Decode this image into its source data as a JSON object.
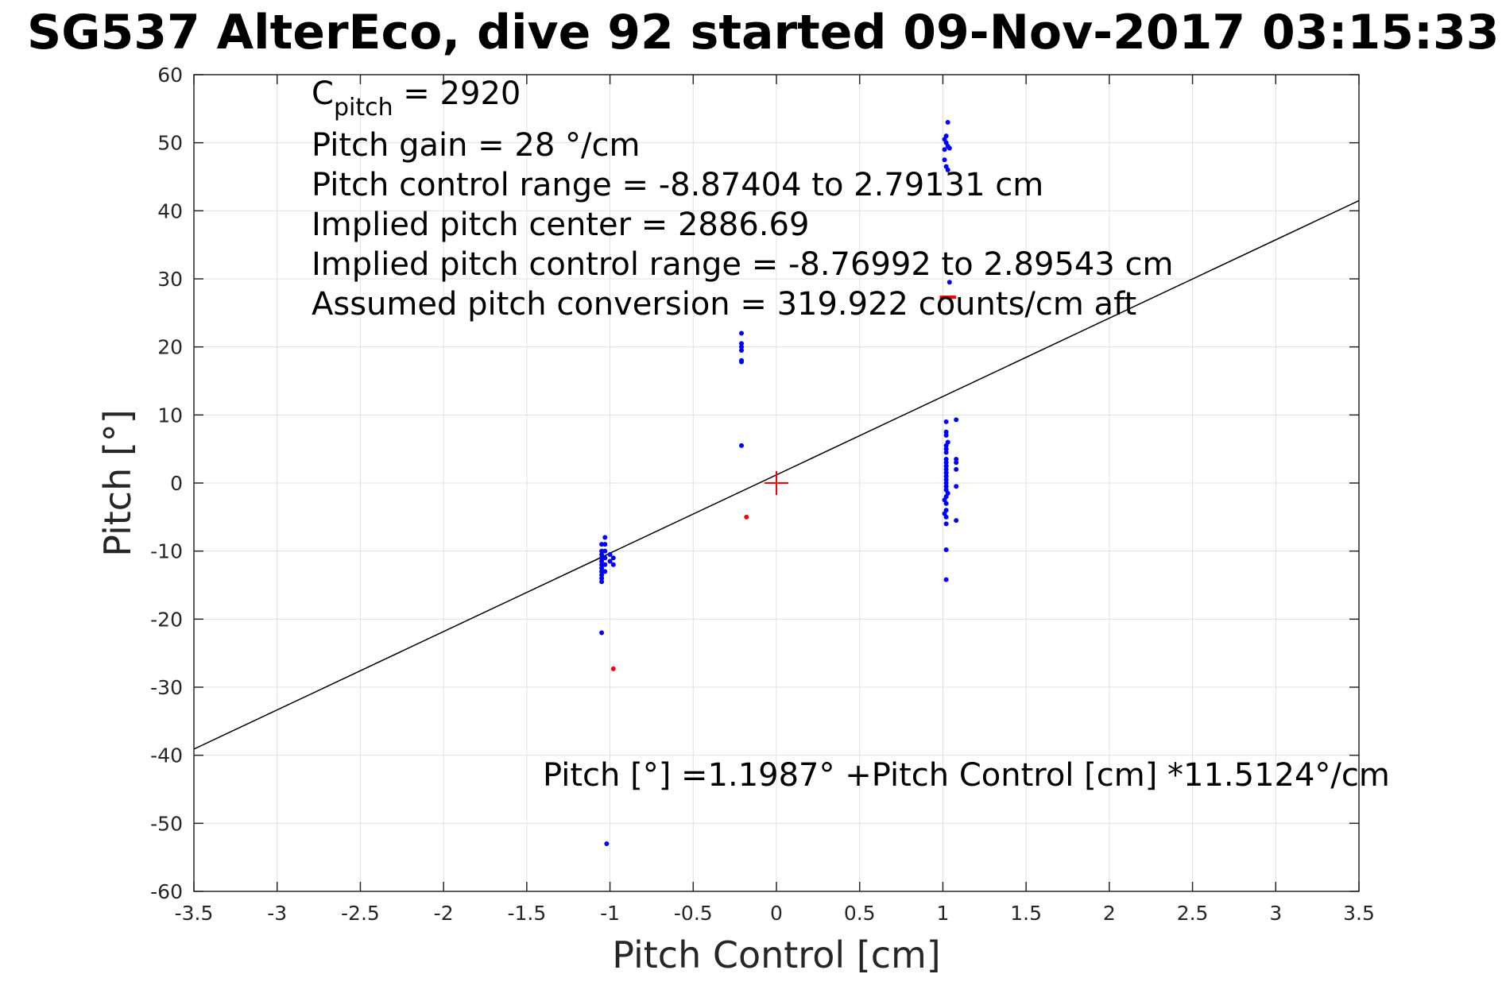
{
  "chart_data": {
    "type": "scatter",
    "title": "SG537 AlterEco, dive 92 started 09-Nov-2017 03:15:33",
    "xlabel": "Pitch Control [cm]",
    "ylabel": "Pitch [°]",
    "xlim": [
      -3.5,
      3.5
    ],
    "ylim": [
      -60,
      60
    ],
    "x_ticks": [
      -3.5,
      -3,
      -2.5,
      -2,
      -1.5,
      -1,
      -0.5,
      0,
      0.5,
      1,
      1.5,
      2,
      2.5,
      3,
      3.5
    ],
    "y_ticks": [
      -60,
      -50,
      -40,
      -30,
      -20,
      -10,
      0,
      10,
      20,
      30,
      40,
      50,
      60
    ],
    "grid": true,
    "colors": {
      "included": "#0000ff",
      "excluded": "#ff0000",
      "fit": "#000000",
      "center": "#ff0000"
    },
    "series": [
      {
        "color": "#0000ff",
        "marker": "dot",
        "points": [
          [
            -1.05,
            -9.0
          ],
          [
            -1.05,
            -10.0
          ],
          [
            -1.05,
            -10.5
          ],
          [
            -1.05,
            -11.0
          ],
          [
            -1.05,
            -11.5
          ],
          [
            -1.05,
            -12.0
          ],
          [
            -1.05,
            -12.5
          ],
          [
            -1.05,
            -13.0
          ],
          [
            -1.05,
            -13.5
          ],
          [
            -1.05,
            -14.0
          ],
          [
            -1.05,
            -14.5
          ],
          [
            -1.03,
            -8.0
          ],
          [
            -1.03,
            -9.0
          ],
          [
            -1.03,
            -10.0
          ],
          [
            -1.03,
            -11.0
          ],
          [
            -1.03,
            -12.0
          ],
          [
            -1.03,
            -13.0
          ],
          [
            -1.0,
            -10.5
          ],
          [
            -1.0,
            -11.5
          ],
          [
            -0.98,
            -11.0
          ],
          [
            -0.98,
            -12.0
          ],
          [
            -1.05,
            -22.0
          ],
          [
            -1.02,
            -53.0
          ],
          [
            -0.21,
            22.0
          ],
          [
            -0.21,
            20.5
          ],
          [
            -0.21,
            20.0
          ],
          [
            -0.21,
            19.5
          ],
          [
            -0.21,
            18.0
          ],
          [
            -0.21,
            17.8
          ],
          [
            -0.21,
            5.5
          ],
          [
            1.03,
            53.0
          ],
          [
            1.02,
            51.0
          ],
          [
            1.01,
            50.5
          ],
          [
            1.02,
            50.0
          ],
          [
            1.03,
            49.5
          ],
          [
            1.01,
            49.0
          ],
          [
            1.04,
            49.2
          ],
          [
            1.01,
            47.5
          ],
          [
            1.02,
            46.5
          ],
          [
            1.03,
            46.0
          ],
          [
            1.04,
            29.5
          ],
          [
            1.02,
            9.0
          ],
          [
            1.02,
            7.5
          ],
          [
            1.02,
            7.0
          ],
          [
            1.02,
            5.5
          ],
          [
            1.02,
            5.0
          ],
          [
            1.02,
            4.5
          ],
          [
            1.02,
            3.5
          ],
          [
            1.02,
            3.0
          ],
          [
            1.02,
            2.5
          ],
          [
            1.02,
            2.0
          ],
          [
            1.02,
            1.5
          ],
          [
            1.02,
            1.0
          ],
          [
            1.02,
            0.5
          ],
          [
            1.02,
            0.0
          ],
          [
            1.02,
            -0.5
          ],
          [
            1.02,
            -1.0
          ],
          [
            1.02,
            -2.0
          ],
          [
            1.02,
            -3.0
          ],
          [
            1.02,
            -4.0
          ],
          [
            1.02,
            -5.0
          ],
          [
            1.02,
            -6.0
          ],
          [
            1.01,
            -2.5
          ],
          [
            1.01,
            -4.5
          ],
          [
            1.03,
            6.0
          ],
          [
            1.03,
            -1.5
          ],
          [
            1.08,
            9.3
          ],
          [
            1.08,
            3.5
          ],
          [
            1.08,
            3.0
          ],
          [
            1.08,
            2.0
          ],
          [
            1.08,
            -0.5
          ],
          [
            1.08,
            -5.5
          ],
          [
            1.02,
            -9.8
          ],
          [
            1.02,
            -14.2
          ]
        ]
      },
      {
        "color": "#ff0000",
        "marker": "dot",
        "points": [
          [
            -0.18,
            -5.0
          ],
          [
            -0.98,
            -27.3
          ]
        ]
      },
      {
        "color": "#ff0000",
        "marker": "dash",
        "points": [
          [
            1.0,
            27.3
          ],
          [
            1.01,
            27.3
          ],
          [
            1.02,
            27.3
          ],
          [
            1.03,
            27.3
          ],
          [
            1.04,
            27.3
          ],
          [
            1.05,
            27.3
          ],
          [
            1.06,
            27.3
          ]
        ]
      },
      {
        "color": "#ff0000",
        "marker": "plus",
        "points": [
          [
            0,
            0
          ]
        ]
      }
    ],
    "fit_line": {
      "intercept": 1.1987,
      "slope": 11.5124,
      "color": "#000000"
    },
    "annotations": {
      "c_pitch_main": "C",
      "c_pitch_sub": "pitch",
      "c_pitch_rest": " = 2920",
      "gain": "Pitch gain = 28 °/cm",
      "range": "Pitch control range = -8.87404 to 2.79131 cm",
      "implied_center": "Implied pitch center = 2886.69",
      "implied_range": "Implied pitch control range = -8.76992 to 2.89543 cm",
      "conversion": "Assumed pitch conversion = 319.922 counts/cm aft",
      "equation": "Pitch [°] =1.1987° +Pitch Control [cm] *11.5124°/cm"
    }
  }
}
